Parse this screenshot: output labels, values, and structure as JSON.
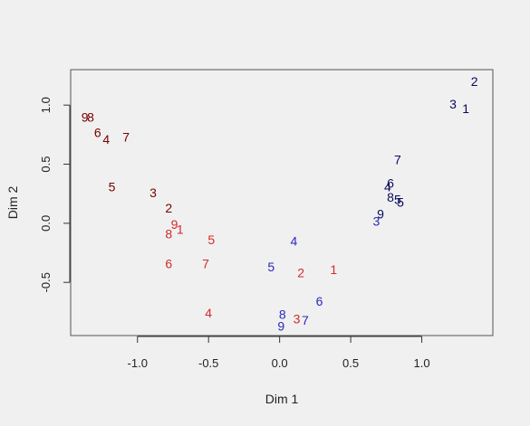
{
  "chart_data": {
    "type": "scatter",
    "title": "",
    "xlabel": "Dim 1",
    "ylabel": "Dim 2",
    "xlim": [
      -1.47,
      1.5
    ],
    "ylim": [
      -0.95,
      1.3
    ],
    "xticks": [
      -1.0,
      -0.5,
      0.0,
      0.5,
      1.0
    ],
    "xtick_labels": [
      "-1.0",
      "-0.5",
      "0.0",
      "0.5",
      "1.0"
    ],
    "yticks": [
      -0.5,
      0.0,
      0.5,
      1.0
    ],
    "ytick_labels": [
      "-0.5",
      "0.0",
      "0.5",
      "1.0"
    ],
    "grid": false,
    "legend": "none",
    "series": [
      {
        "color": "#7a0000",
        "points": [
          {
            "label": "9",
            "x": -1.37,
            "y": 0.9
          },
          {
            "label": "8",
            "x": -1.33,
            "y": 0.9
          },
          {
            "label": "6",
            "x": -1.28,
            "y": 0.77
          },
          {
            "label": "4",
            "x": -1.22,
            "y": 0.71
          },
          {
            "label": "7",
            "x": -1.08,
            "y": 0.73
          },
          {
            "label": "5",
            "x": -1.18,
            "y": 0.31
          },
          {
            "label": "3",
            "x": -0.89,
            "y": 0.26
          },
          {
            "label": "2",
            "x": -0.78,
            "y": 0.13
          }
        ]
      },
      {
        "color": "#d42a2a",
        "points": [
          {
            "label": "9",
            "x": -0.74,
            "y": -0.01
          },
          {
            "label": "1",
            "x": -0.7,
            "y": -0.05
          },
          {
            "label": "8",
            "x": -0.78,
            "y": -0.09
          },
          {
            "label": "5",
            "x": -0.48,
            "y": -0.14
          },
          {
            "label": "6",
            "x": -0.78,
            "y": -0.34
          },
          {
            "label": "7",
            "x": -0.52,
            "y": -0.34
          },
          {
            "label": "2",
            "x": 0.15,
            "y": -0.42
          },
          {
            "label": "1",
            "x": 0.38,
            "y": -0.39
          },
          {
            "label": "4",
            "x": -0.5,
            "y": -0.76
          },
          {
            "label": "3",
            "x": 0.12,
            "y": -0.81
          }
        ]
      },
      {
        "color": "#2828c0",
        "points": [
          {
            "label": "4",
            "x": 0.1,
            "y": -0.15
          },
          {
            "label": "5",
            "x": -0.06,
            "y": -0.37
          },
          {
            "label": "6",
            "x": 0.28,
            "y": -0.66
          },
          {
            "label": "8",
            "x": 0.02,
            "y": -0.77
          },
          {
            "label": "7",
            "x": 0.18,
            "y": -0.82
          },
          {
            "label": "9",
            "x": 0.01,
            "y": -0.87
          },
          {
            "label": "3",
            "x": 0.68,
            "y": 0.02
          }
        ]
      },
      {
        "color": "#0a0a60",
        "points": [
          {
            "label": "2",
            "x": 1.37,
            "y": 1.2
          },
          {
            "label": "3",
            "x": 1.22,
            "y": 1.01
          },
          {
            "label": "1",
            "x": 1.31,
            "y": 0.97
          },
          {
            "label": "7",
            "x": 0.83,
            "y": 0.54
          },
          {
            "label": "6",
            "x": 0.78,
            "y": 0.34
          },
          {
            "label": "4",
            "x": 0.76,
            "y": 0.31
          },
          {
            "label": "8",
            "x": 0.78,
            "y": 0.22
          },
          {
            "label": "5",
            "x": 0.83,
            "y": 0.2
          },
          {
            "label": "5",
            "x": 0.85,
            "y": 0.18
          },
          {
            "label": "9",
            "x": 0.71,
            "y": 0.08
          }
        ]
      }
    ]
  }
}
